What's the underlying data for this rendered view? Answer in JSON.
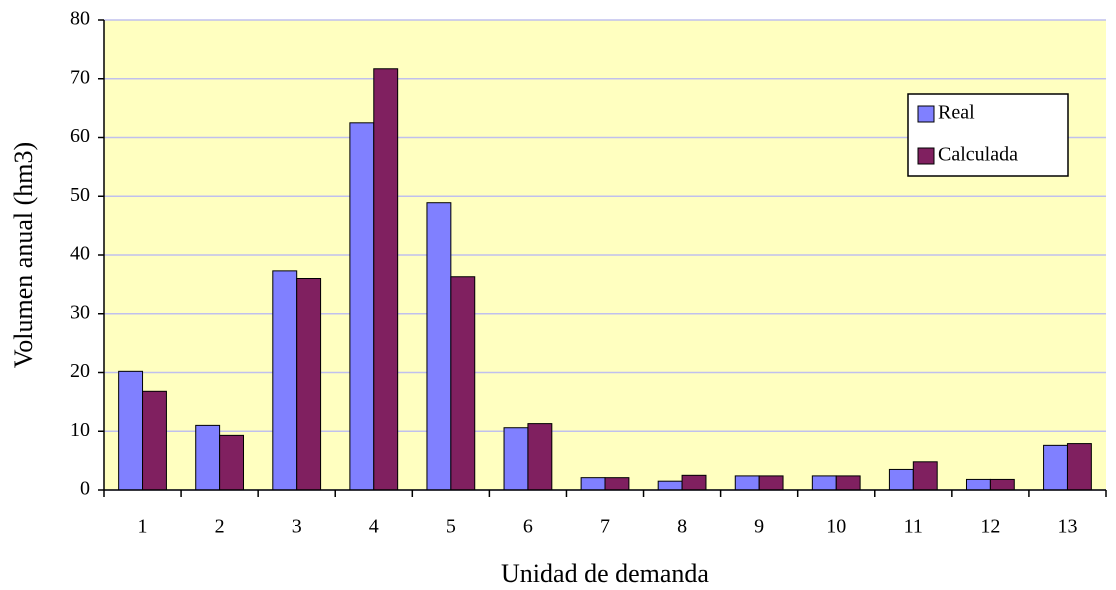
{
  "chart_data": {
    "type": "bar",
    "x_label": "Unidad de demanda",
    "y_label": "Volumen anual (hm3)",
    "categories": [
      "1",
      "2",
      "3",
      "4",
      "5",
      "6",
      "7",
      "8",
      "9",
      "10",
      "11",
      "12",
      "13"
    ],
    "series": [
      {
        "name": "Real",
        "color": "#8080ff",
        "values": [
          20.2,
          11,
          37.3,
          62.5,
          48.9,
          10.6,
          2.1,
          1.5,
          2.4,
          2.4,
          3.5,
          1.8,
          7.6
        ]
      },
      {
        "name": "Calculada",
        "color": "#802060",
        "values": [
          16.8,
          9.3,
          36,
          71.7,
          36.3,
          11.3,
          2.1,
          2.5,
          2.4,
          2.4,
          4.8,
          1.8,
          7.9
        ]
      }
    ],
    "ylim": [
      0,
      80
    ],
    "yticks": [
      0,
      10,
      20,
      30,
      40,
      50,
      60,
      70,
      80
    ],
    "grid": true,
    "legend": "upper right",
    "background": "#ffffc0"
  }
}
